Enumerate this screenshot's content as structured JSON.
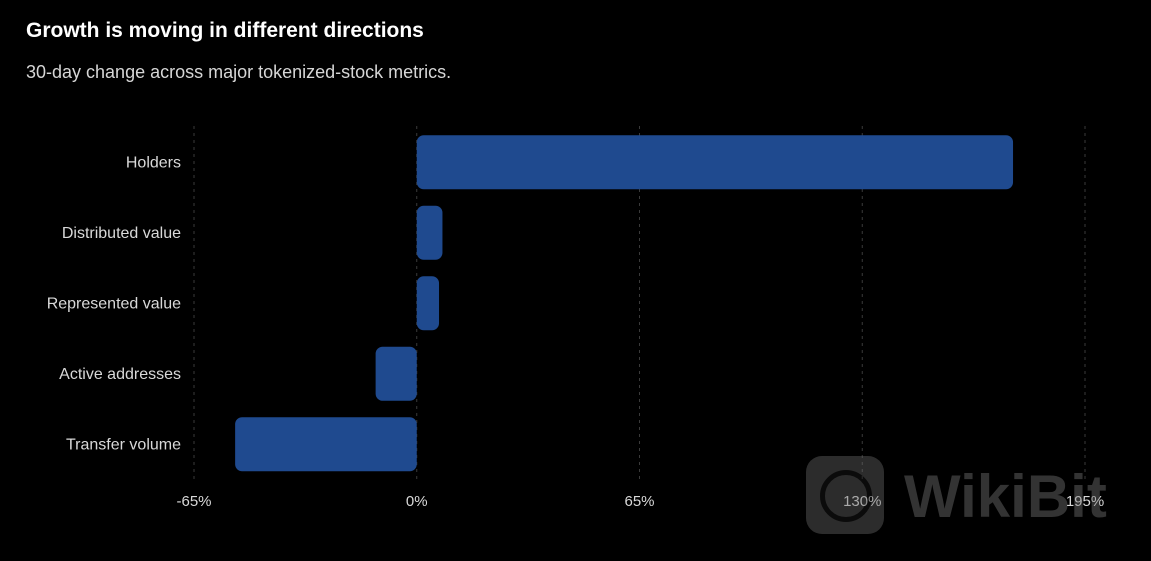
{
  "title": "Growth is moving in different directions",
  "subtitle": "30-day change across major tokenized-stock metrics.",
  "watermark": {
    "text": "WikiBit",
    "icon": "wikibit-logo-icon"
  },
  "colors": {
    "background": "#000000",
    "bar": "#1f4a8f",
    "grid": "#3a3a3a",
    "text": "#d9d9d9"
  },
  "chart_data": {
    "type": "bar",
    "orientation": "horizontal",
    "title": "Growth is moving in different directions",
    "subtitle": "30-day change across major tokenized-stock metrics.",
    "xlabel": "",
    "ylabel": "",
    "categories": [
      "Holders",
      "Distributed value",
      "Represented value",
      "Active addresses",
      "Transfer volume"
    ],
    "values": [
      174,
      7.5,
      6.5,
      -12,
      -53
    ],
    "unit": "%",
    "xlim": [
      -65,
      195
    ],
    "xticks": [
      -65,
      0,
      65,
      130,
      195
    ],
    "xtick_labels": [
      "-65%",
      "0%",
      "65%",
      "130%",
      "195%"
    ],
    "grid": "vertical dashed",
    "legend": "none"
  }
}
